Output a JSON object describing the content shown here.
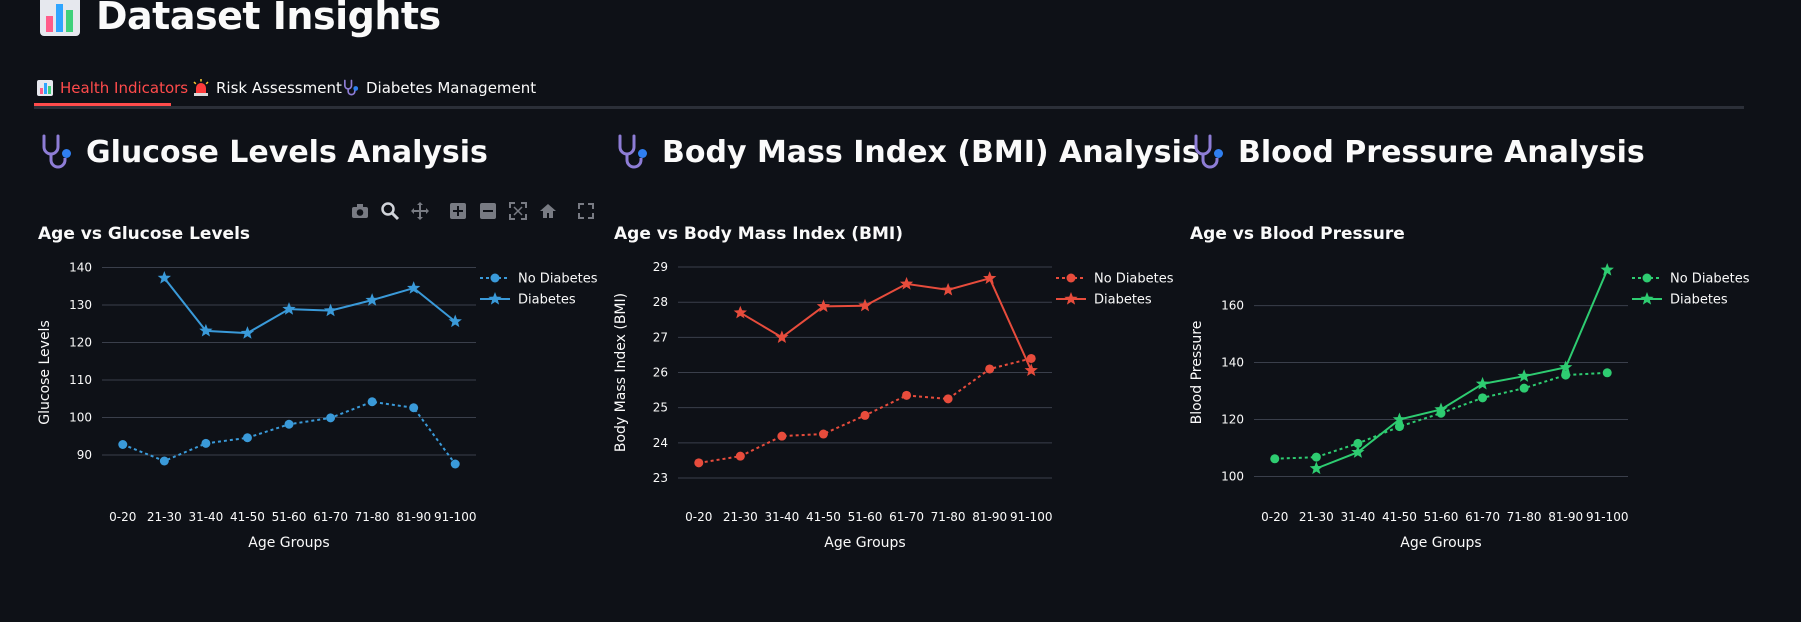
{
  "page": {
    "title": "Dataset Insights",
    "title_icon": "bar-chart-icon"
  },
  "tabs": [
    {
      "label": "Health Indicators",
      "icon": "bar-chart-icon",
      "active": true
    },
    {
      "label": "Risk Assessment",
      "icon": "siren-icon",
      "active": false
    },
    {
      "label": "Diabetes Management",
      "icon": "stethoscope-icon",
      "active": false
    }
  ],
  "sections": [
    {
      "title": "Glucose Levels Analysis",
      "icon": "stethoscope-icon"
    },
    {
      "title": "Body Mass Index (BMI) Analysis",
      "icon": "stethoscope-icon"
    },
    {
      "title": "Blood Pressure Analysis",
      "icon": "stethoscope-icon"
    }
  ],
  "modebar": [
    "camera-icon",
    "zoom-icon",
    "pan-icon",
    "zoom-in-icon",
    "zoom-out-icon",
    "autoscale-icon",
    "reset-axes-icon",
    "fullscreen-icon"
  ],
  "colors": {
    "accent": "#ff4b4b",
    "glucose": "#3a9ad9",
    "bmi": "#e74c3c",
    "bp": "#2ecc71"
  },
  "chart_data": [
    {
      "type": "line",
      "title": "Age vs Glucose Levels",
      "xlabel": "Age Groups",
      "ylabel": "Glucose Levels",
      "categories": [
        "0-20",
        "21-30",
        "31-40",
        "41-50",
        "51-60",
        "61-70",
        "71-80",
        "81-90",
        "91-100"
      ],
      "ylim": [
        82,
        142
      ],
      "yticks": [
        90,
        100,
        110,
        120,
        130,
        140
      ],
      "grid": true,
      "legend": "top-right",
      "series": [
        {
          "name": "No Diabetes",
          "marker": "circle",
          "dash": true,
          "values": [
            92.8,
            88.4,
            93.1,
            94.6,
            98.2,
            99.9,
            104.2,
            102.6,
            87.6
          ]
        },
        {
          "name": "Diabetes",
          "marker": "star",
          "dash": false,
          "values": [
            null,
            137.2,
            123.1,
            122.5,
            128.9,
            128.5,
            131.3,
            134.5,
            125.6
          ]
        }
      ]
    },
    {
      "type": "line",
      "title": "Age vs Body Mass Index (BMI)",
      "xlabel": "Age Groups",
      "ylabel": "Body Mass Index (BMI)",
      "categories": [
        "0-20",
        "21-30",
        "31-40",
        "41-50",
        "51-60",
        "61-70",
        "71-80",
        "81-90",
        "91-100"
      ],
      "ylim": [
        22.8,
        29.2
      ],
      "yticks": [
        23,
        24,
        25,
        26,
        27,
        28,
        29
      ],
      "grid": true,
      "legend": "top-right",
      "series": [
        {
          "name": "No Diabetes",
          "marker": "circle",
          "dash": true,
          "values": [
            23.43,
            23.62,
            24.19,
            24.25,
            24.78,
            25.35,
            25.25,
            26.1,
            26.4
          ]
        },
        {
          "name": "Diabetes",
          "marker": "star",
          "dash": false,
          "values": [
            null,
            27.7,
            27.0,
            27.88,
            27.9,
            28.52,
            28.35,
            28.68,
            26.06
          ]
        }
      ]
    },
    {
      "type": "line",
      "title": "Age vs Blood Pressure",
      "xlabel": "Age Groups",
      "ylabel": "Blood Pressure",
      "categories": [
        "0-20",
        "21-30",
        "31-40",
        "41-50",
        "51-60",
        "61-70",
        "71-80",
        "81-90",
        "91-100"
      ],
      "ylim": [
        97,
        176
      ],
      "yticks": [
        100,
        120,
        140,
        160
      ],
      "grid": true,
      "legend": "top-right",
      "series": [
        {
          "name": "No Diabetes",
          "marker": "circle",
          "dash": true,
          "values": [
            106.2,
            106.8,
            111.6,
            117.5,
            122.2,
            127.6,
            131.0,
            135.6,
            136.4
          ]
        },
        {
          "name": "Diabetes",
          "marker": "star",
          "dash": false,
          "values": [
            null,
            102.8,
            108.5,
            120.0,
            123.5,
            132.5,
            135.2,
            138.3,
            172.5
          ]
        }
      ]
    }
  ]
}
